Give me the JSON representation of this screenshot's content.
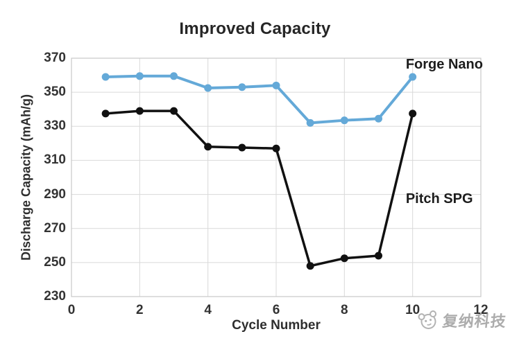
{
  "title": "Improved Capacity",
  "chart_data": {
    "type": "line",
    "title": "Improved Capacity",
    "x": [
      1,
      2,
      3,
      4,
      5,
      6,
      7,
      8,
      9,
      10
    ],
    "series": [
      {
        "name": "Forge Nano",
        "color": "#64a9d8",
        "values": [
          359,
          359.5,
          359.5,
          352.5,
          353,
          354,
          332,
          333.5,
          334.5,
          359
        ]
      },
      {
        "name": "Pitch SPG",
        "color": "#111111",
        "values": [
          337.5,
          339,
          339,
          318,
          317.5,
          317,
          248,
          252.5,
          254,
          337.5
        ]
      }
    ],
    "xlabel": "Cycle Number",
    "ylabel": "Discharge Capacity (mAh/g)",
    "xlim": [
      0,
      12
    ],
    "ylim": [
      230,
      370
    ],
    "xticks": [
      0,
      2,
      4,
      6,
      8,
      10,
      12
    ],
    "yticks": [
      370,
      350,
      330,
      310,
      290,
      270,
      250,
      230
    ],
    "grid": true,
    "grid_color": "#d9d9d9",
    "border_color": "#c7c7c7",
    "legend_position": "inline-annotations",
    "annotations": [
      {
        "text": "Forge Nano",
        "x": 9.8,
        "y": 366.5
      },
      {
        "text": "Pitch SPG",
        "x": 9.8,
        "y": 287.5
      }
    ]
  },
  "watermark": {
    "text": "复纳科技",
    "color": "#9e9e9e",
    "logo_icon": "panda-logo-icon"
  }
}
